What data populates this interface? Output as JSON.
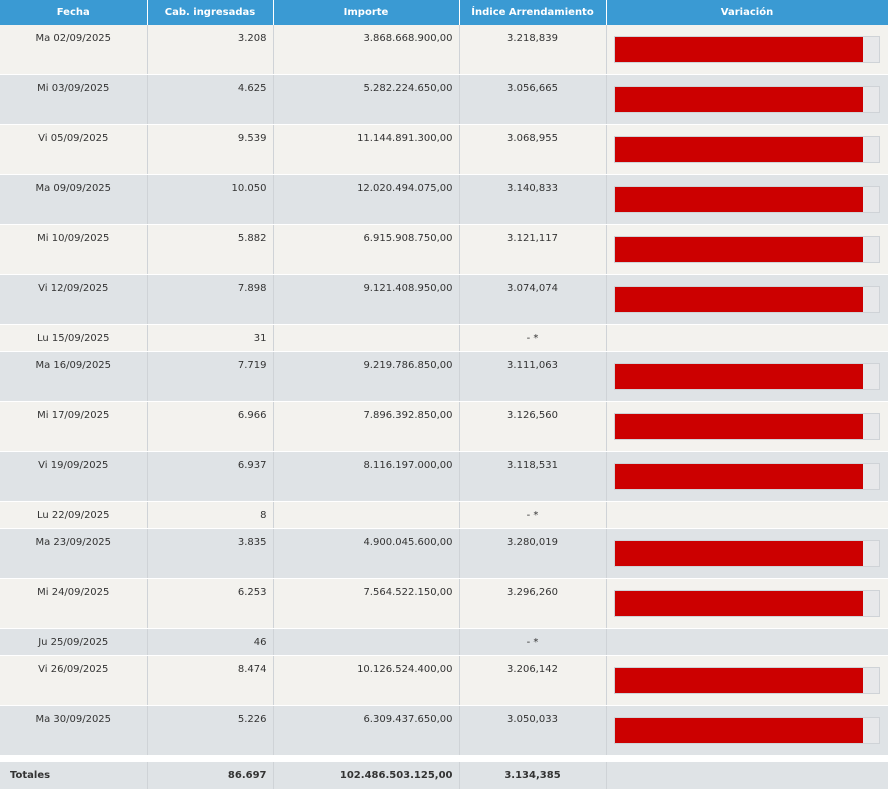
{
  "headers": {
    "fecha": "Fecha",
    "cabezas": "Cab. ingresadas",
    "importe": "Importe",
    "indice": "Índice Arrendamiento",
    "variacion": "Variación"
  },
  "rows": [
    {
      "fecha": "Ma 02/09/2025",
      "cabezas": "3.208",
      "importe": "3.868.668.900,00",
      "indice": "3.218,839",
      "variacion": 0.94
    },
    {
      "fecha": "Mi 03/09/2025",
      "cabezas": "4.625",
      "importe": "5.282.224.650,00",
      "indice": "3.056,665",
      "variacion": 0.94
    },
    {
      "fecha": "Vi 05/09/2025",
      "cabezas": "9.539",
      "importe": "11.144.891.300,00",
      "indice": "3.068,955",
      "variacion": 0.94
    },
    {
      "fecha": "Ma 09/09/2025",
      "cabezas": "10.050",
      "importe": "12.020.494.075,00",
      "indice": "3.140,833",
      "variacion": 0.94
    },
    {
      "fecha": "Mi 10/09/2025",
      "cabezas": "5.882",
      "importe": "6.915.908.750,00",
      "indice": "3.121,117",
      "variacion": 0.94
    },
    {
      "fecha": "Vi 12/09/2025",
      "cabezas": "7.898",
      "importe": "9.121.408.950,00",
      "indice": "3.074,074",
      "variacion": 0.94
    },
    {
      "fecha": "Lu 15/09/2025",
      "cabezas": "31",
      "importe": "",
      "indice": "- *",
      "variacion": null
    },
    {
      "fecha": "Ma 16/09/2025",
      "cabezas": "7.719",
      "importe": "9.219.786.850,00",
      "indice": "3.111,063",
      "variacion": 0.94
    },
    {
      "fecha": "Mi 17/09/2025",
      "cabezas": "6.966",
      "importe": "7.896.392.850,00",
      "indice": "3.126,560",
      "variacion": 0.94
    },
    {
      "fecha": "Vi 19/09/2025",
      "cabezas": "6.937",
      "importe": "8.116.197.000,00",
      "indice": "3.118,531",
      "variacion": 0.94
    },
    {
      "fecha": "Lu 22/09/2025",
      "cabezas": "8",
      "importe": "",
      "indice": "- *",
      "variacion": null
    },
    {
      "fecha": "Ma 23/09/2025",
      "cabezas": "3.835",
      "importe": "4.900.045.600,00",
      "indice": "3.280,019",
      "variacion": 0.94
    },
    {
      "fecha": "Mi 24/09/2025",
      "cabezas": "6.253",
      "importe": "7.564.522.150,00",
      "indice": "3.296,260",
      "variacion": 0.94
    },
    {
      "fecha": "Ju 25/09/2025",
      "cabezas": "46",
      "importe": "",
      "indice": "- *",
      "variacion": null
    },
    {
      "fecha": "Vi 26/09/2025",
      "cabezas": "8.474",
      "importe": "10.126.524.400,00",
      "indice": "3.206,142",
      "variacion": 0.94
    },
    {
      "fecha": "Ma 30/09/2025",
      "cabezas": "5.226",
      "importe": "6.309.437.650,00",
      "indice": "3.050,033",
      "variacion": 0.94
    }
  ],
  "totals": {
    "label": "Totales",
    "cabezas": "86.697",
    "importe": "102.486.503.125,00",
    "indice": "3.134,385"
  },
  "colors": {
    "header_bg": "#3a9ad3",
    "bar_fill": "#cc0000",
    "row_odd": "#f3f2ee",
    "row_even": "#dfe3e6"
  }
}
